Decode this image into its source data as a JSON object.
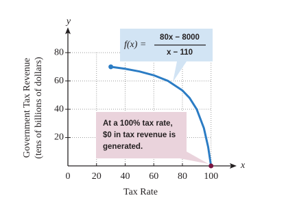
{
  "chart_data": {
    "type": "line",
    "x_label": "x",
    "y_label": "y",
    "axis_title_x": "Tax Rate",
    "axis_title_y": [
      "Government Tax Revenue",
      "(tens of billions of dollars)"
    ],
    "formula": {
      "lhs": "f(x) =",
      "numerator": "80x − 8000",
      "denominator": "x − 110"
    },
    "annotation": [
      "At a 100% tax rate,",
      "$0 in tax revenue is",
      "generated."
    ],
    "x": [
      30,
      40,
      50,
      60,
      70,
      80,
      85,
      90,
      95,
      98,
      100
    ],
    "series": [
      {
        "color": "#2b7cc4",
        "values": [
          70,
          68.6,
          66.7,
          64,
          60,
          53.3,
          48,
          40,
          26.7,
          13.3,
          0
        ]
      }
    ],
    "xlim": [
      0,
      115
    ],
    "ylim": [
      0,
      95
    ],
    "xticks": [
      0,
      20,
      40,
      60,
      80,
      100
    ],
    "yticks": [
      20,
      40,
      60,
      80
    ],
    "grid": true
  }
}
